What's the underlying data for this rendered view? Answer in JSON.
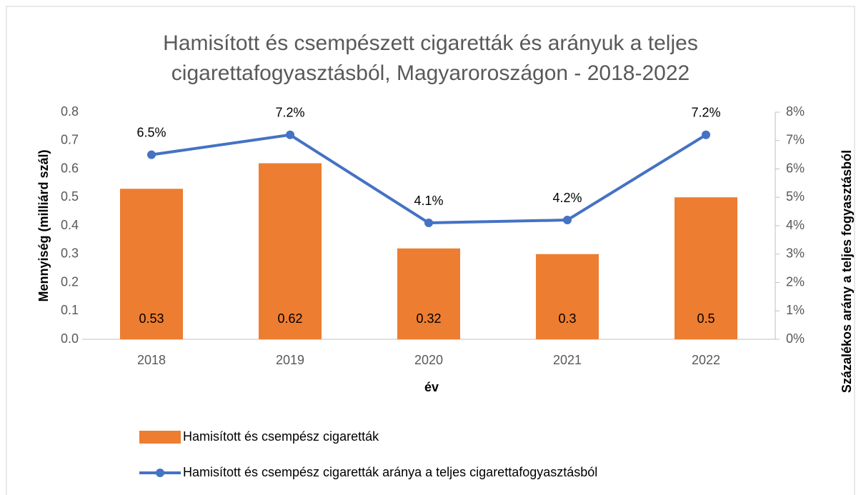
{
  "chart_data": {
    "type": "bar-line",
    "title": "Hamisított és csempészett cigaretták és arányuk a teljes cigarettafogyasztásból, Magyaroroszágon - 2018-2022",
    "x_label": "év",
    "y_label": "Mennyiség (milliárd szál)",
    "y2_label": "Százalékos arány a teljes fogyasztásból",
    "categories": [
      "2018",
      "2019",
      "2020",
      "2021",
      "2022"
    ],
    "series": [
      {
        "name": "Hamisított és csempész cigaretták",
        "type": "bar",
        "color": "#ed7d31",
        "values": [
          0.53,
          0.62,
          0.32,
          0.3,
          0.5
        ]
      },
      {
        "name": "Hamisított és csempész cigaretták aránya a teljes cigarettafogyasztásból",
        "type": "line",
        "axis": "y2",
        "color": "#4472c4",
        "values": [
          6.5,
          7.2,
          4.1,
          4.2,
          7.2
        ],
        "value_labels": [
          "6.5%",
          "7.2%",
          "4.1%",
          "4.2%",
          "7.2%"
        ]
      }
    ],
    "ylim": [
      0,
      0.8
    ],
    "yticks": [
      {
        "value": 0,
        "label": "0.0"
      },
      0.1,
      0.2,
      0.3,
      0.4,
      0.5,
      0.6,
      0.7,
      0.8
    ],
    "y2lim": [
      0,
      8
    ],
    "y2ticks": [
      {
        "value": 0,
        "label": "0%"
      },
      {
        "value": 1,
        "label": "1%"
      },
      {
        "value": 2,
        "label": "2%"
      },
      {
        "value": 3,
        "label": "3%"
      },
      {
        "value": 4,
        "label": "4%"
      },
      {
        "value": 5,
        "label": "5%"
      },
      {
        "value": 6,
        "label": "6%"
      },
      {
        "value": 7,
        "label": "7%"
      },
      {
        "value": 8,
        "label": "8%"
      }
    ],
    "legend": "bottom"
  }
}
